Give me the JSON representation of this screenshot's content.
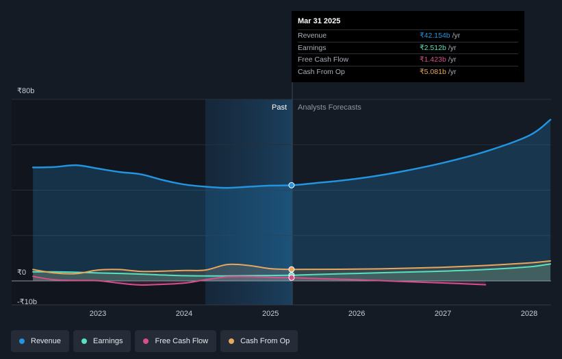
{
  "chart_data": {
    "type": "line",
    "x": [
      "2022-04-01",
      "2022-07-01",
      "2022-10-01",
      "2023-01-01",
      "2023-04-01",
      "2023-07-01",
      "2023-10-01",
      "2024-01-01",
      "2024-04-01",
      "2024-07-01",
      "2024-10-01",
      "2025-01-01",
      "2025-03-31"
    ],
    "x_forecast": [
      "2025-03-31",
      "2025-06-30",
      "2025-12-31",
      "2026-06-30",
      "2026-12-31",
      "2027-06-30",
      "2027-12-31",
      "2028-03-31"
    ],
    "series": [
      {
        "name": "Revenue",
        "color": "#2394df",
        "values": [
          50,
          50.2,
          51,
          49.5,
          48,
          47,
          44.5,
          42.5,
          41.5,
          41,
          41.5,
          42,
          42.154
        ],
        "forecast": [
          42.154,
          43,
          45,
          48,
          52,
          57,
          64,
          71
        ]
      },
      {
        "name": "Earnings",
        "color": "#58e1c1",
        "values": [
          4,
          4,
          3.8,
          3.5,
          3.3,
          3,
          2.6,
          2.3,
          2.2,
          2.2,
          2.3,
          2.4,
          2.512
        ],
        "forecast": [
          2.512,
          2.8,
          3.3,
          3.8,
          4.3,
          5,
          6.2,
          7.5
        ]
      },
      {
        "name": "Free Cash Flow",
        "color": "#d64e8c",
        "values": [
          2,
          0.5,
          0.2,
          0.1,
          -1,
          -1.8,
          -1.5,
          -1,
          0.5,
          1.8,
          1.9,
          1.6,
          1.423
        ],
        "forecast": [
          1.423,
          1.1,
          0.5,
          -0.2,
          -0.9,
          -1.7
        ]
      },
      {
        "name": "Cash From Op",
        "color": "#e7a75e",
        "values": [
          5,
          3.5,
          3.2,
          4.8,
          5,
          4.2,
          4.3,
          4.6,
          4.8,
          7.2,
          6.8,
          5.4,
          5.081
        ],
        "forecast": [
          5.081,
          5.1,
          5.2,
          5.5,
          6,
          6.8,
          7.9,
          8.8
        ]
      }
    ],
    "xaxis": {
      "ticks": [
        "2023",
        "2024",
        "2025",
        "2026",
        "2027",
        "2028"
      ]
    },
    "yaxis": {
      "min": -10,
      "max": 80,
      "ticks": [
        "₹80b",
        "₹0",
        "-₹10b"
      ]
    },
    "regions": {
      "past": "Past",
      "forecast": "Analysts Forecasts"
    },
    "grid": true,
    "legend_position": "bottom-left"
  },
  "tooltip": {
    "date": "Mar 31 2025",
    "unit": "/yr",
    "rows": [
      {
        "label": "Revenue",
        "value": "₹42.154b",
        "color": "#2394df"
      },
      {
        "label": "Earnings",
        "value": "₹2.512b",
        "color": "#58e1c1"
      },
      {
        "label": "Free Cash Flow",
        "value": "₹1.423b",
        "color": "#d64e8c"
      },
      {
        "label": "Cash From Op",
        "value": "₹5.081b",
        "color": "#e7a75e"
      }
    ]
  },
  "legend": [
    {
      "label": "Revenue",
      "color": "#2394df"
    },
    {
      "label": "Earnings",
      "color": "#58e1c1"
    },
    {
      "label": "Free Cash Flow",
      "color": "#d64e8c"
    },
    {
      "label": "Cash From Op",
      "color": "#e7a75e"
    }
  ]
}
